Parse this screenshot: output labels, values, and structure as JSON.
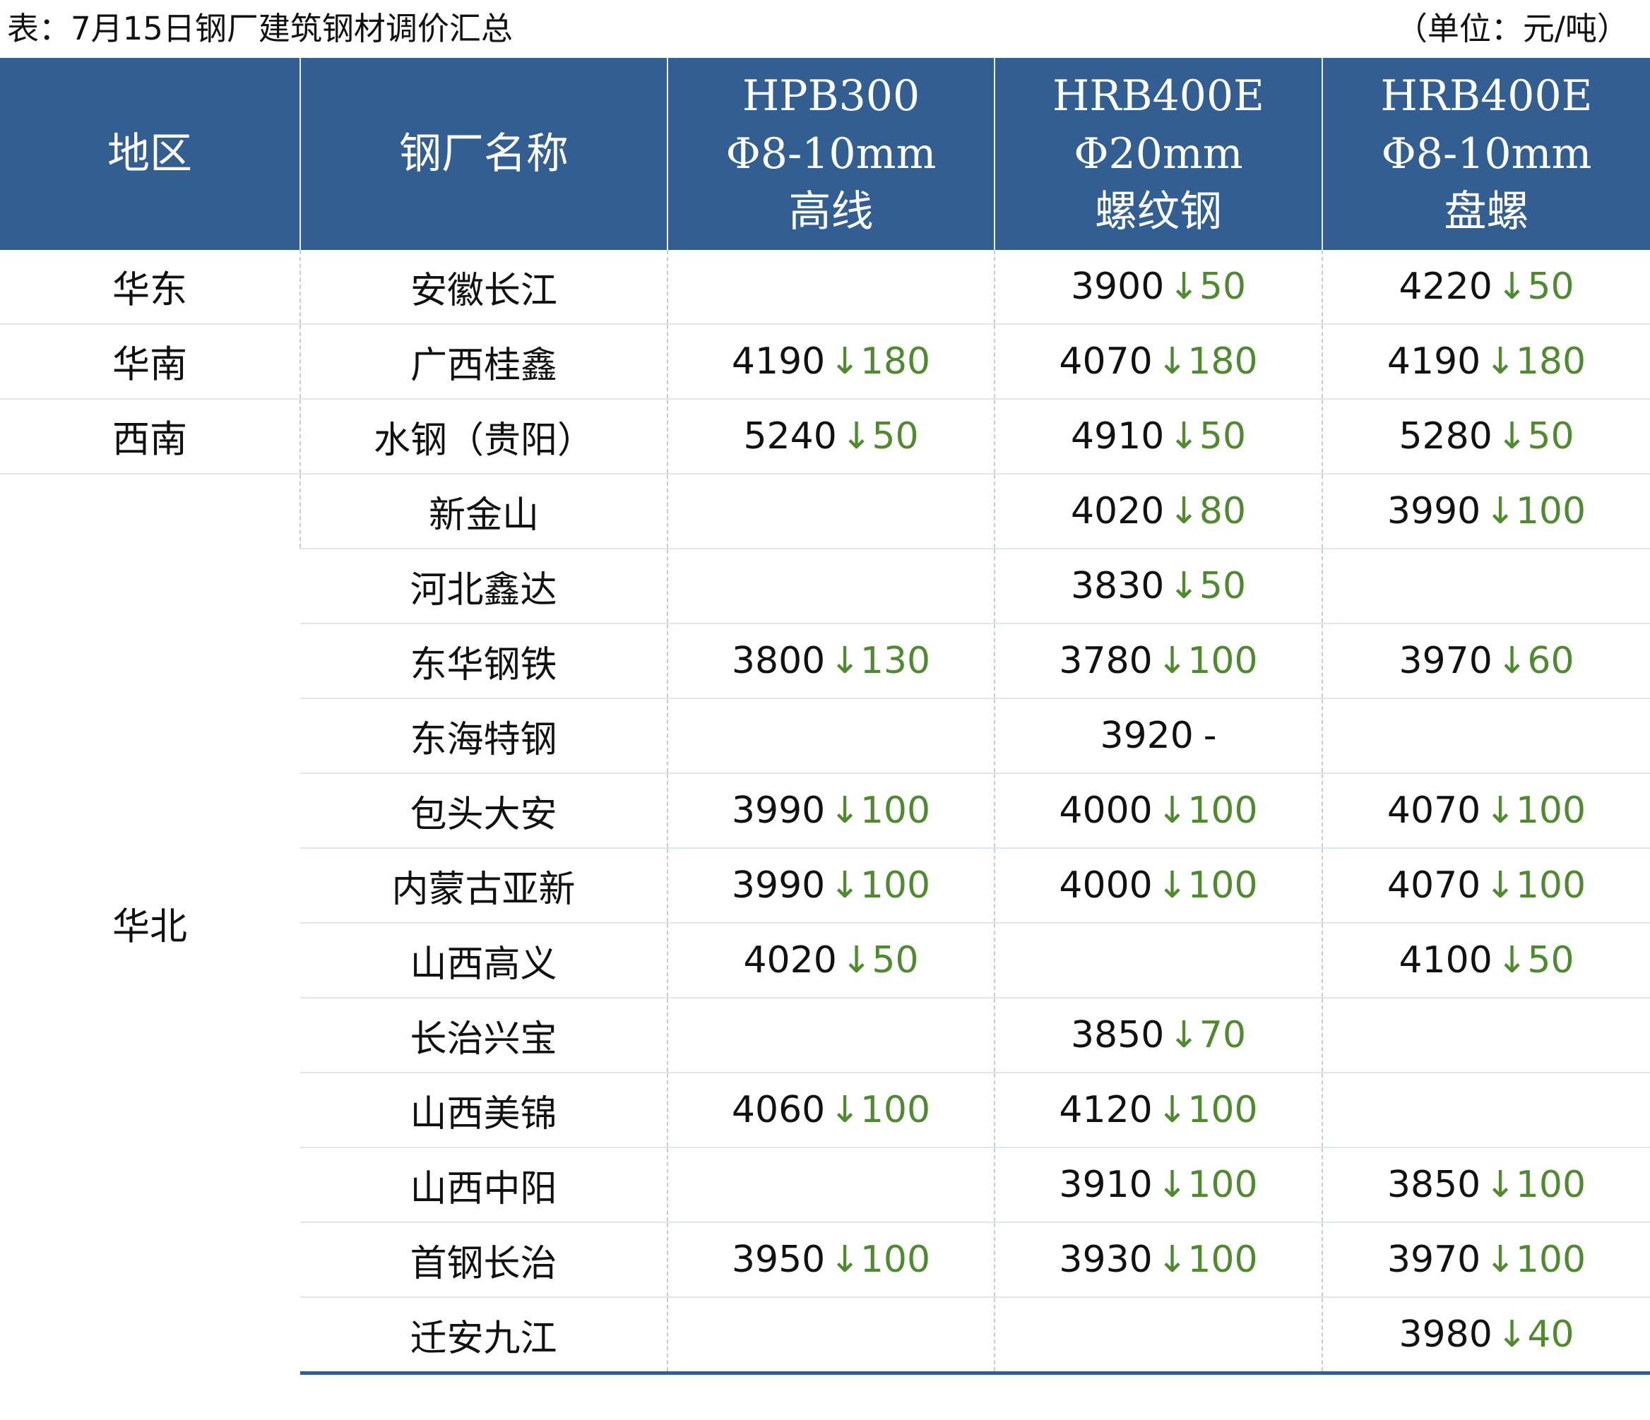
{
  "caption": {
    "title": "表：7月15日钢厂建筑钢材调价汇总",
    "unit": "（单位：元/吨）"
  },
  "columns": {
    "region": "地区",
    "mill": "钢厂名称",
    "c1": [
      "HPB300",
      "Φ8-10mm",
      "高线"
    ],
    "c2": [
      "HRB400E",
      "Φ20mm",
      "螺纹钢"
    ],
    "c3": [
      "HRB400E",
      "Φ8-10mm",
      "盘螺"
    ]
  },
  "colors": {
    "header_bg": "#335e91",
    "header_text": "#ffffff",
    "change_down": "#4f8a2e"
  },
  "rows": [
    {
      "region": "华东",
      "mill": "安徽长江",
      "c1": null,
      "c2": {
        "price": "3900",
        "change": "50",
        "dir": "↓"
      },
      "c3": {
        "price": "4220",
        "change": "50",
        "dir": "↓"
      }
    },
    {
      "region": "华南",
      "mill": "广西桂鑫",
      "c1": {
        "price": "4190",
        "change": "180",
        "dir": "↓"
      },
      "c2": {
        "price": "4070",
        "change": "180",
        "dir": "↓"
      },
      "c3": {
        "price": "4190",
        "change": "180",
        "dir": "↓"
      }
    },
    {
      "region": "西南",
      "mill": "水钢（贵阳）",
      "c1": {
        "price": "5240",
        "change": "50",
        "dir": "↓"
      },
      "c2": {
        "price": "4910",
        "change": "50",
        "dir": "↓"
      },
      "c3": {
        "price": "5280",
        "change": "50",
        "dir": "↓"
      }
    },
    {
      "region": "华北",
      "mill": "新金山",
      "c1": null,
      "c2": {
        "price": "4020",
        "change": "80",
        "dir": "↓"
      },
      "c3": {
        "price": "3990",
        "change": "100",
        "dir": "↓"
      }
    },
    {
      "region": "华北",
      "mill": "河北鑫达",
      "c1": null,
      "c2": {
        "price": "3830",
        "change": "50",
        "dir": "↓"
      },
      "c3": null
    },
    {
      "region": "华北",
      "mill": "东华钢铁",
      "c1": {
        "price": "3800",
        "change": "130",
        "dir": "↓"
      },
      "c2": {
        "price": "3780",
        "change": "100",
        "dir": "↓"
      },
      "c3": {
        "price": "3970",
        "change": "60",
        "dir": "↓"
      }
    },
    {
      "region": "华北",
      "mill": "东海特钢",
      "c1": null,
      "c2": {
        "price": "3920",
        "change": "",
        "dir": "-"
      },
      "c3": null
    },
    {
      "region": "华北",
      "mill": "包头大安",
      "c1": {
        "price": "3990",
        "change": "100",
        "dir": "↓"
      },
      "c2": {
        "price": "4000",
        "change": "100",
        "dir": "↓"
      },
      "c3": {
        "price": "4070",
        "change": "100",
        "dir": "↓"
      }
    },
    {
      "region": "华北",
      "mill": "内蒙古亚新",
      "c1": {
        "price": "3990",
        "change": "100",
        "dir": "↓"
      },
      "c2": {
        "price": "4000",
        "change": "100",
        "dir": "↓"
      },
      "c3": {
        "price": "4070",
        "change": "100",
        "dir": "↓"
      }
    },
    {
      "region": "华北",
      "mill": "山西高义",
      "c1": {
        "price": "4020",
        "change": "50",
        "dir": "↓"
      },
      "c2": null,
      "c3": {
        "price": "4100",
        "change": "50",
        "dir": "↓"
      }
    },
    {
      "region": "华北",
      "mill": "长治兴宝",
      "c1": null,
      "c2": {
        "price": "3850",
        "change": "70",
        "dir": "↓"
      },
      "c3": null
    },
    {
      "region": "华北",
      "mill": "山西美锦",
      "c1": {
        "price": "4060",
        "change": "100",
        "dir": "↓"
      },
      "c2": {
        "price": "4120",
        "change": "100",
        "dir": "↓"
      },
      "c3": null
    },
    {
      "region": "华北",
      "mill": "山西中阳",
      "c1": null,
      "c2": {
        "price": "3910",
        "change": "100",
        "dir": "↓"
      },
      "c3": {
        "price": "3850",
        "change": "100",
        "dir": "↓"
      }
    },
    {
      "region": "华北",
      "mill": "首钢长治",
      "c1": {
        "price": "3950",
        "change": "100",
        "dir": "↓"
      },
      "c2": {
        "price": "3930",
        "change": "100",
        "dir": "↓"
      },
      "c3": {
        "price": "3970",
        "change": "100",
        "dir": "↓"
      }
    },
    {
      "region": "华北",
      "mill": "迁安九江",
      "c1": null,
      "c2": null,
      "c3": {
        "price": "3980",
        "change": "40",
        "dir": "↓"
      }
    }
  ]
}
